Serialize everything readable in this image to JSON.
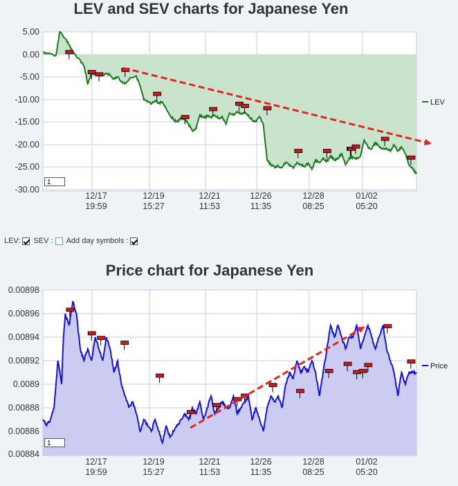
{
  "controls": {
    "lev_label": "LEV:",
    "sev_label": "SEV :",
    "day_symbols_label": "Add day symbols :",
    "lev_checked": true,
    "sev_checked": false,
    "day_symbols_checked": true
  },
  "chart_data": [
    {
      "type": "area",
      "title": "LEV and SEV charts for Japanese Yen",
      "xlabel": "",
      "ylabel": "",
      "x_ticks": [
        [
          "12/17",
          "19:59"
        ],
        [
          "12/19",
          "15:27"
        ],
        [
          "12/21",
          "11:53"
        ],
        [
          "12/26",
          "11:35"
        ],
        [
          "12/28",
          "08:25"
        ],
        [
          "01/02",
          "05:20"
        ]
      ],
      "y_ticks": [
        "5.00",
        "0.00",
        "-5.00",
        "-10.00",
        "-15.00",
        "-20.00",
        "-25.00",
        "-30.00"
      ],
      "ylim": [
        -30,
        5.5
      ],
      "grid": true,
      "legend_position": "right",
      "zoom_value": "1",
      "colors": {
        "line": "#1a7a1a",
        "fill": "#c9e3cc",
        "trend": "#e8231f",
        "marker": "#d0181c"
      },
      "series": [
        {
          "name": "LEV",
          "x": [
            0.0,
            0.02,
            0.035,
            0.045,
            0.06,
            0.07,
            0.08,
            0.095,
            0.11,
            0.12,
            0.13,
            0.14,
            0.155,
            0.17,
            0.18,
            0.19,
            0.2,
            0.21,
            0.22,
            0.235,
            0.25,
            0.26,
            0.27,
            0.28,
            0.29,
            0.3,
            0.31,
            0.32,
            0.33,
            0.34,
            0.35,
            0.36,
            0.37,
            0.38,
            0.39,
            0.4,
            0.41,
            0.42,
            0.43,
            0.44,
            0.45,
            0.46,
            0.47,
            0.48,
            0.49,
            0.5,
            0.51,
            0.52,
            0.53,
            0.54,
            0.55,
            0.56,
            0.57,
            0.58,
            0.59,
            0.6,
            0.61,
            0.62,
            0.63,
            0.64,
            0.65,
            0.66,
            0.67,
            0.68,
            0.69,
            0.7,
            0.71,
            0.72,
            0.73,
            0.74,
            0.75,
            0.76,
            0.77,
            0.78,
            0.79,
            0.8,
            0.81,
            0.82,
            0.83,
            0.84,
            0.85,
            0.86,
            0.87,
            0.88,
            0.89,
            0.9,
            0.91,
            0.92,
            0.93,
            0.94,
            0.95,
            0.96,
            0.97,
            0.98,
            0.99,
            1.0
          ],
          "y": [
            0.5,
            0.2,
            -0.2,
            5.0,
            3.5,
            2.2,
            0.5,
            -0.8,
            -2.5,
            -6.5,
            -4.0,
            -4.5,
            -4.8,
            -4.2,
            -4.6,
            -5.5,
            -5.0,
            -6.0,
            -6.5,
            -5.2,
            -4.8,
            -7.0,
            -10.0,
            -10.5,
            -11.0,
            -10.2,
            -10.8,
            -10.5,
            -12.0,
            -13.5,
            -14.5,
            -15.0,
            -14.2,
            -14.5,
            -15.5,
            -17.0,
            -16.5,
            -13.5,
            -14.0,
            -13.8,
            -14.0,
            -13.5,
            -14.2,
            -13.8,
            -15.5,
            -13.0,
            -13.5,
            -12.8,
            -13.2,
            -13.0,
            -13.5,
            -14.5,
            -15.0,
            -13.8,
            -15.5,
            -23.5,
            -24.5,
            -25.0,
            -24.8,
            -25.2,
            -24.0,
            -24.5,
            -25.3,
            -24.0,
            -24.5,
            -25.0,
            -24.2,
            -25.5,
            -23.5,
            -24.0,
            -23.0,
            -23.8,
            -22.5,
            -23.5,
            -23.0,
            -22.0,
            -24.5,
            -23.0,
            -22.8,
            -23.2,
            -22.5,
            -19.0,
            -20.5,
            -21.0,
            -19.5,
            -20.5,
            -21.0,
            -20.8,
            -21.5,
            -20.0,
            -21.5,
            -20.5,
            -22.0,
            -24.5,
            -25.5,
            -26.5
          ]
        },
        {
          "name": "SEV",
          "x": [],
          "y": []
        }
      ],
      "trendline": {
        "x": [
          0.215,
          1.04
        ],
        "y": [
          -3.0,
          -19.8
        ]
      },
      "day_markers": {
        "x": [
          0.07,
          0.13,
          0.15,
          0.22,
          0.305,
          0.38,
          0.455,
          0.525,
          0.54,
          0.6,
          0.683,
          0.76,
          0.823,
          0.825,
          0.837,
          0.915,
          0.985
        ],
        "y": [
          0.5,
          -4.0,
          -4.5,
          -3.5,
          -8.8,
          -14.0,
          -12.2,
          -11.0,
          -11.5,
          -12.0,
          -21.5,
          -21.5,
          -21.0,
          -21.0,
          -20.5,
          -18.8,
          -23.0
        ]
      }
    },
    {
      "type": "area",
      "title": "Price chart for Japanese Yen",
      "xlabel": "",
      "ylabel": "",
      "x_ticks": [
        [
          "12/17",
          "19:59"
        ],
        [
          "12/19",
          "15:27"
        ],
        [
          "12/21",
          "11:53"
        ],
        [
          "12/26",
          "11:35"
        ],
        [
          "12/28",
          "08:25"
        ],
        [
          "01/02",
          "05:20"
        ]
      ],
      "y_ticks": [
        "0.00898",
        "0.00896",
        "0.00894",
        "0.00892",
        "0.0089",
        "0.00888",
        "0.00886",
        "0.00884"
      ],
      "ylim": [
        0.00884,
        0.00899
      ],
      "grid": true,
      "legend_position": "right",
      "zoom_value": "1",
      "colors": {
        "line": "#1212d8",
        "fill": "#ccccf2",
        "trend": "#e8231f",
        "marker": "#d0181c"
      },
      "series": [
        {
          "name": "Price",
          "x": [
            0.0,
            0.01,
            0.02,
            0.03,
            0.04,
            0.05,
            0.055,
            0.06,
            0.07,
            0.08,
            0.09,
            0.1,
            0.11,
            0.12,
            0.13,
            0.14,
            0.15,
            0.16,
            0.17,
            0.18,
            0.19,
            0.2,
            0.21,
            0.22,
            0.23,
            0.24,
            0.25,
            0.26,
            0.27,
            0.28,
            0.29,
            0.3,
            0.31,
            0.32,
            0.33,
            0.34,
            0.35,
            0.36,
            0.37,
            0.38,
            0.39,
            0.4,
            0.41,
            0.42,
            0.43,
            0.44,
            0.45,
            0.46,
            0.47,
            0.48,
            0.49,
            0.5,
            0.51,
            0.52,
            0.53,
            0.54,
            0.55,
            0.56,
            0.57,
            0.58,
            0.59,
            0.6,
            0.61,
            0.62,
            0.63,
            0.64,
            0.65,
            0.66,
            0.67,
            0.68,
            0.69,
            0.7,
            0.71,
            0.72,
            0.73,
            0.74,
            0.75,
            0.76,
            0.77,
            0.78,
            0.79,
            0.8,
            0.81,
            0.82,
            0.83,
            0.84,
            0.85,
            0.86,
            0.87,
            0.88,
            0.89,
            0.9,
            0.91,
            0.92,
            0.93,
            0.94,
            0.95,
            0.96,
            0.97,
            0.98,
            0.99,
            1.0
          ],
          "y": [
            0.00887,
            0.008865,
            0.00887,
            0.00888,
            0.00892,
            0.0089,
            0.00894,
            0.00896,
            0.00895,
            0.00897,
            0.00896,
            0.00893,
            0.00892,
            0.00893,
            0.00892,
            0.00894,
            0.00893,
            0.00892,
            0.00894,
            0.00893,
            0.00891,
            0.00892,
            0.0089,
            0.00889,
            0.00888,
            0.008885,
            0.008875,
            0.00886,
            0.00887,
            0.008865,
            0.00886,
            0.00887,
            0.00886,
            0.00885,
            0.008865,
            0.008855,
            0.00886,
            0.008865,
            0.00887,
            0.008875,
            0.00887,
            0.00888,
            0.008875,
            0.008885,
            0.00887,
            0.00888,
            0.00889,
            0.008875,
            0.00888,
            0.008885,
            0.00888,
            0.00888,
            0.00889,
            0.008875,
            0.00888,
            0.008885,
            0.00889,
            0.00887,
            0.00888,
            0.00887,
            0.00886,
            0.00888,
            0.00889,
            0.008885,
            0.00889,
            0.00888,
            0.0089,
            0.00891,
            0.008905,
            0.00892,
            0.00891,
            0.008915,
            0.00891,
            0.00892,
            0.00891,
            0.00889,
            0.00891,
            0.00893,
            0.00895,
            0.00894,
            0.00895,
            0.00894,
            0.00893,
            0.00894,
            0.00894,
            0.00895,
            0.00893,
            0.00894,
            0.00895,
            0.00894,
            0.00893,
            0.00894,
            0.00895,
            0.00893,
            0.00892,
            0.00891,
            0.00889,
            0.00891,
            0.0089,
            0.00891,
            0.00891,
            0.00891
          ]
        },
        {
          "name": "",
          "x": [],
          "y": []
        }
      ],
      "trendline": {
        "x": [
          0.395,
          0.862
        ],
        "y": [
          0.008863,
          0.008949
        ]
      },
      "day_markers": {
        "x": [
          0.072,
          0.13,
          0.155,
          0.218,
          0.312,
          0.395,
          0.465,
          0.52,
          0.54,
          0.615,
          0.688,
          0.765,
          0.815,
          0.84,
          0.856,
          0.87,
          0.922,
          0.985
        ],
        "y": [
          0.008963,
          0.008943,
          0.008939,
          0.008935,
          0.008907,
          0.008876,
          0.008882,
          0.008887,
          0.00889,
          0.008899,
          0.008894,
          0.008911,
          0.008917,
          0.00891,
          0.008911,
          0.008916,
          0.008949,
          0.008919
        ]
      }
    }
  ]
}
